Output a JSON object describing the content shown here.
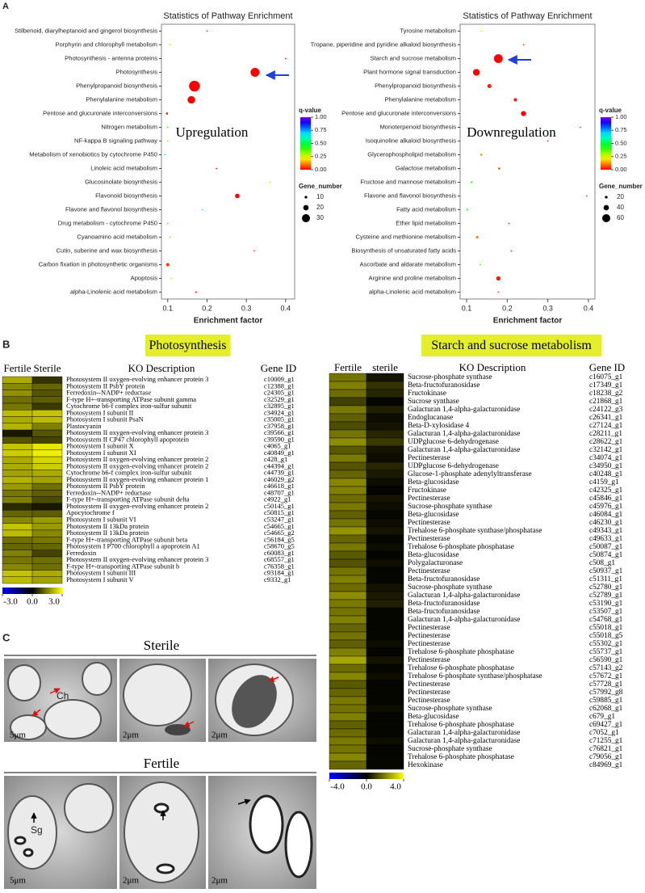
{
  "panels": {
    "a": "A",
    "b": "B",
    "c": "C"
  },
  "chart_data": [
    {
      "type": "scatter",
      "title": "Statistics of Pathway Enrichment",
      "xlabel": "Enrichment factor",
      "annotation": "Upregulation",
      "categories": [
        "Stilbenoid, diarylheptanoid and gingerol biosynthesis",
        "Porphyrin and chlorophyll metabolism",
        "Photosynthesis - antenna proteins",
        "Photosynthesis",
        "Phenylpropanoid biosynthesis",
        "Phenylalanine metabolism",
        "Pentose and glucuronate interconversions",
        "Nitrogen metabolism",
        "NF-kappa B signaling pathway",
        "Metabolism of xenobiotics by cytochrome P450",
        "Linoleic acid metabolism",
        "Glucosinolate biosynthesis",
        "Flavonoid biosynthesis",
        "Flavone and flavonol biosynthesis",
        "Drug metabolism - cytochrome P450",
        "Cyanoamino acid metabolism",
        "Cutin, suberine and wax biosynthesis",
        "Carbon fixation in photosynthetic organisms",
        "Apoptosis",
        "alpha-Linolenic acid metabolism"
      ],
      "values": [
        0.2,
        0.106,
        0.4,
        0.322,
        0.168,
        0.16,
        0.098,
        0.1,
        0.1,
        0.092,
        0.224,
        0.36,
        0.277,
        0.188,
        0.1,
        0.106,
        0.32,
        0.1,
        0.108,
        0.172
      ],
      "sizes": [
        3,
        3,
        3,
        33,
        40,
        28,
        8,
        3,
        3,
        2,
        5,
        2,
        17,
        1,
        3,
        3,
        3,
        12,
        6,
        6
      ],
      "qvalues": [
        0.05,
        0.3,
        0.02,
        0,
        0,
        0,
        0.02,
        0.45,
        0.35,
        0.6,
        0.02,
        0.3,
        0,
        0.6,
        0.4,
        0.35,
        0.05,
        0.05,
        0.25,
        0.02
      ],
      "xlim": [
        0.084,
        0.423
      ],
      "xticks": [
        0.1,
        0.2,
        0.3,
        0.4
      ],
      "color_title": "q-value",
      "clim": [
        0,
        1
      ],
      "cticks": [
        {
          "value": 1,
          "label": "1.00"
        },
        {
          "value": 0.75,
          "label": "0.75"
        },
        {
          "value": 0.5,
          "label": "0.50"
        },
        {
          "value": 0.25,
          "label": "0.25"
        },
        {
          "value": 0,
          "label": "0.00"
        }
      ],
      "size_title": "Gene_number",
      "size_legend": [
        10,
        20,
        30
      ]
    },
    {
      "type": "scatter",
      "title": "Statistics of Pathway Enrichment",
      "xlabel": "Enrichment factor",
      "annotation": "Downregulation",
      "categories": [
        "Tyrosine metabolism",
        "Tropane, piperidine and pyridine alkaloid biosynthesis",
        "Starch and sucrose metabolism",
        "Plant hormone signal transduction",
        "Phenylpropanoid biosynthesis",
        "Phenylalanine metabolism",
        "Pentose and glucuronate interconversions",
        "Monoterpenoid biosynthesis",
        "Isoquinoline alkaloid biosynthesis",
        "Glycerophospholipid metabolism",
        "Galactose metabolism",
        "Fructose and mannose metabolism",
        "Flavone and flavonol biosynthesis",
        "Fatty acid metabolism",
        "Ether lipid metabolism",
        "Cysteine and methionine metabolism",
        "Biosynthesis of unsaturated fatty acids",
        "Ascorbate and aldarate metabolism",
        "Arginine and proline metabolism",
        "alpha-Linolenic acid metabolism"
      ],
      "values": [
        0.136,
        0.24,
        0.178,
        0.124,
        0.156,
        0.22,
        0.24,
        0.38,
        0.3,
        0.136,
        0.18,
        0.112,
        0.396,
        0.102,
        0.204,
        0.126,
        0.21,
        0.134,
        0.178,
        0.178
      ],
      "sizes": [
        10,
        4,
        65,
        50,
        30,
        25,
        38,
        4,
        4,
        15,
        15,
        14,
        3,
        12,
        5,
        20,
        10,
        10,
        32,
        10
      ],
      "qvalues": [
        0.25,
        0.05,
        0,
        0,
        0.02,
        0.02,
        0,
        0.05,
        0.05,
        0.12,
        0.05,
        0.4,
        0.05,
        0.45,
        0.05,
        0.12,
        0.05,
        0.4,
        0.02,
        0.05
      ],
      "xlim": [
        0.084,
        0.416
      ],
      "xticks": [
        0.1,
        0.2,
        0.3,
        0.4
      ],
      "color_title": "q-value",
      "clim": [
        0,
        1
      ],
      "cticks": [
        {
          "value": 1,
          "label": "1.00"
        },
        {
          "value": 0.75,
          "label": "0.75"
        },
        {
          "value": 0.5,
          "label": "0.50"
        },
        {
          "value": 0.25,
          "label": "0.25"
        },
        {
          "value": 0,
          "label": "0.00"
        }
      ],
      "size_title": "Gene_number",
      "size_legend": [
        20,
        40,
        60
      ]
    },
    {
      "type": "heatmap",
      "title": "Photosynthesis",
      "row_header": "KO Description",
      "id_header": "Gene ID",
      "rows": [
        "Photosystem II oxygen-evolving enhancer protein 3",
        "Photosystem II PsbY protein",
        "Ferredoxin--NADP+ reductase",
        "F-type H+-transporting ATPase subunit gamma",
        "Cytochrome b6-f complex iron-sulfur subunit",
        "Photosystem I subunit II",
        "Photosystem I subunit PsaN",
        "Plastocyanin",
        "Photosystem II oxygen-evolving enhancer protein 3",
        "Photosystem II CP47 chlorophyll apoprotein",
        "Photosystem I subunit X",
        "Photosystem I subunit XI",
        "Photosystem II oxygen-evolving enhancer protein 2",
        "Photosystem II oxygen-evolving enhancer protein 2",
        "Cytochrome b6-f complex iron-sulfur subunit",
        "Photosystem II oxygen-evolving enhancer protein 1",
        "Photosystem II PsbY protein",
        "Ferredoxin--NADP+ reductase",
        "F-type H+-transporting ATPase subunit delta",
        "Photosystem II oxygen-evolving enhancer protein 2",
        "Apocytochrome f",
        "Photosystem I subunit VI",
        "Photosystem II 13kDa protein",
        "Photosystem II 13kDa protein",
        "F-type H+-transporting ATPase subunit beta",
        "Photosystem I P700 chlorophyll a apoprotein A1",
        "Ferredoxin",
        "Photosystem II oxygen-evolving enhancer protein 3",
        "F-type H+-transporting ATPase subunit b",
        "Photosystem I subunit III",
        "Photosystem I subunit V"
      ],
      "ids": [
        "c10009_g1",
        "c12388_g1",
        "c24305_g1",
        "c32529_g1",
        "c32895_g1",
        "c34924_g1",
        "c35005_g1",
        "c37958_g1",
        "c39566_g1",
        "c39590_g1",
        "c4065_g1",
        "c40849_g1",
        "c428_g1",
        "c44394_g1",
        "c44739_g1",
        "c46029_g2",
        "c46618_g1",
        "c48707_g1",
        "c4922_g1",
        "c50145_g1",
        "c50815_g1",
        "c53247_g1",
        "c54665_g1",
        "c54665_g2",
        "c56184_g5",
        "c58670_g5",
        "c60083_g1",
        "c68557_g1",
        "c76358_g1",
        "c93184_g1",
        "c9332_g1"
      ],
      "series": [
        {
          "name": "Fertile",
          "values": [
            2.0,
            1.6,
            1.7,
            1.3,
            1.4,
            2.2,
            2.0,
            2.1,
            0.3,
            1.0,
            2.3,
            2.4,
            2.0,
            2.0,
            1.9,
            2.1,
            1.8,
            1.4,
            1.5,
            0.5,
            1.2,
            1.6,
            2.3,
            2.2,
            1.3,
            1.2,
            1.5,
            1.4,
            1.6,
            2.3,
            2.2
          ]
        },
        {
          "name": "Sterile",
          "values": [
            0.6,
            1.2,
            1.0,
            1.1,
            0.7,
            2.3,
            2.2,
            1.5,
            1.0,
            0.8,
            2.7,
            2.8,
            2.5,
            2.4,
            2.0,
            1.9,
            1.3,
            1.1,
            0.9,
            0.3,
            1.1,
            1.8,
            1.8,
            1.6,
            1.4,
            1.2,
            0.8,
            1.3,
            1.3,
            2.0,
            1.9
          ]
        }
      ],
      "clim": [
        -3,
        3
      ],
      "cticks": [
        {
          "value": -3,
          "label": "-3.0"
        },
        {
          "value": 0,
          "label": "0.0"
        },
        {
          "value": 3,
          "label": "3.0"
        }
      ]
    },
    {
      "type": "heatmap",
      "title": "Starch and sucrose metabolism",
      "row_header": "KO Description",
      "id_header": "Gene ID",
      "rows": [
        "Sucrose-phosphate synthase",
        "Beta-fructofuranosidase",
        "Fructokinase",
        "Sucrose synthase",
        "Galacturan 1,4-alpha-galacturonidase",
        "Endoglucanase",
        "Beta-D-xylosidase 4",
        "Galacturan 1,4-alpha-galacturonidase",
        "UDPglucose 6-dehydrogenase",
        "Galacturan 1,4-alpha-galacturonidase",
        "Pectinesterase",
        "UDPglucose 6-dehydrogenase",
        "Glucose-1-phosphate adenylyltransferase",
        "Beta-glucosidase",
        "Fructokinase",
        "Pectinesterase",
        "Sucrose-phosphate synthase",
        "Beta-glucosidase",
        "Pectinesterase",
        "Trehalose 6-phosphate synthase/phosphatase",
        "Pectinesterase",
        "Trehalose 6-phosphate phosphatase",
        "Beta-glucosidase",
        "Polygalacturonase",
        "Pectinesterase",
        "Beta-fructofuranosidase",
        "Sucrose-phosphate synthase",
        "Galacturan 1,4-alpha-galacturonidase",
        "Beta-fructofuranosidase",
        "Beta-fructofuranosidase",
        "Galacturan 1,4-alpha-galacturonidase",
        "Pectinesterase",
        "Pectinesterase",
        "Pectinesterase",
        "Trehalose 6-phosphate phosphatase",
        "Pectinesterase",
        "Trehalose 6-phosphate phosphatase",
        "Trehalose 6-phosphate synthase/phosphatase",
        "Pectinesterase",
        "Pectinesterase",
        "Pectinesterase",
        "Sucrose-phosphate synthase",
        "Beta-glucosidase",
        "Trehalose 6-phosphate phosphatase",
        "Galacturan 1,4-alpha-galacturonidase",
        "Galacturan 1,4-alpha-galacturonidase",
        "Sucrose-phosphate synthase",
        "Trehalose 6-phosphate phosphatase",
        "Hexokinase"
      ],
      "ids": [
        "c16075_g1",
        "c17349_g1",
        "c18238_g2",
        "c21868_g1",
        "c24122_g3",
        "c26341_g1",
        "c27124_g1",
        "c28211_g1",
        "c28622_g1",
        "c32142_g1",
        "c34074_g1",
        "c34950_g1",
        "c40248_g1",
        "c4159_g1",
        "c42325_g1",
        "c45846_g1",
        "c45976_g1",
        "c46084_g1",
        "c46230_g1",
        "c49343_g1",
        "c49633_g1",
        "c50087_g1",
        "c50874_g1",
        "c508_g1",
        "c50937_g1",
        "c51311_g1",
        "c52780_g1",
        "c52789_g1",
        "c53190_g1",
        "c53507_g1",
        "c54768_g1",
        "c55018_g1",
        "c55018_g5",
        "c55302_g1",
        "c55737_g1",
        "c56590_g1",
        "c57143_g2",
        "c57672_g1",
        "c57728_g1",
        "c57992_g8",
        "c59885_g1",
        "c62068_g1",
        "c679_g1",
        "c69427_g1",
        "c7052_g1",
        "c71255_g1",
        "c76821_g1",
        "c79056_g1",
        "c84969_g1"
      ],
      "series": [
        {
          "name": "Fertile",
          "values": [
            1.8,
            2.0,
            1.7,
            1.0,
            1.9,
            1.5,
            1.2,
            1.8,
            2.2,
            1.4,
            1.9,
            1.3,
            1.6,
            2.1,
            2.0,
            1.7,
            1.9,
            1.5,
            1.8,
            2.3,
            1.6,
            1.9,
            1.4,
            1.3,
            1.8,
            2.0,
            1.7,
            2.2,
            1.9,
            1.8,
            2.0,
            1.6,
            1.8,
            1.5,
            2.0,
            2.6,
            1.7,
            2.1,
            1.4,
            1.6,
            1.9,
            1.8,
            2.0,
            1.5,
            1.7,
            1.9,
            1.8,
            2.1,
            1.6
          ]
        },
        {
          "name": "sterile",
          "values": [
            0.3,
            0.8,
            0.6,
            0.1,
            0.5,
            0.2,
            0.3,
            0.6,
            0.9,
            0.3,
            0.2,
            0.6,
            0.4,
            0.2,
            0.1,
            0.3,
            0.2,
            0.1,
            0.2,
            0.3,
            0.1,
            0.2,
            0.1,
            0.2,
            0.1,
            0.1,
            0.3,
            0.4,
            0.5,
            0.1,
            0.1,
            0.1,
            0.1,
            0.2,
            0.1,
            0.3,
            0.1,
            0.2,
            0.1,
            0.1,
            0.1,
            0.2,
            0.1,
            0.1,
            0.1,
            0.2,
            0.1,
            0.1,
            0.1
          ]
        }
      ],
      "clim": [
        -4,
        4
      ],
      "cticks": [
        {
          "value": -4,
          "label": "-4.0"
        },
        {
          "value": 0,
          "label": "0.0"
        },
        {
          "value": 4,
          "label": "4.0"
        }
      ]
    }
  ],
  "micrographs": {
    "sterile": {
      "title": "Sterile",
      "scales": [
        "5μm",
        "2μm",
        "2μm"
      ],
      "label": "Ch"
    },
    "fertile": {
      "title": "Fertile",
      "scales": [
        "5μm",
        "2μm",
        "2μm"
      ],
      "label": "Sg"
    }
  }
}
